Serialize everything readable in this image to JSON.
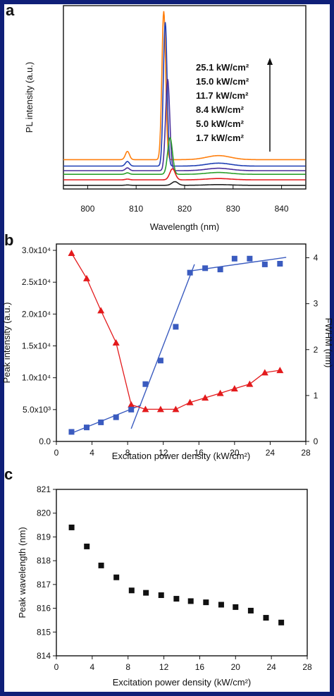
{
  "colors": {
    "border": "#0f1f78"
  },
  "chart_data": [
    {
      "panel": "a",
      "type": "line",
      "xlabel": "Wavelength (nm)",
      "ylabel": "PL intensity (a.u.)",
      "xlim": [
        795,
        845
      ],
      "ylim": [
        0,
        100
      ],
      "xticks": [
        800,
        810,
        820,
        830,
        840
      ],
      "yticks": [],
      "legend_entries": [
        "25.1 kW/cm²",
        "15.0 kW/cm²",
        "11.7 kW/cm²",
        "8.4 kW/cm²",
        "5.0 kW/cm²",
        "1.7 kW/cm²"
      ],
      "series": [
        {
          "name": "25.1 kW/cm²",
          "color": "#ff7f0e",
          "baseline": 16,
          "bump808": 4.5,
          "peak": 97,
          "peakx": 815.7,
          "width": 0.55,
          "hump": 2.2
        },
        {
          "name": "15.0 kW/cm²",
          "color": "#1f3fb4",
          "baseline": 12.5,
          "bump808": 2.5,
          "peak": 91,
          "peakx": 816.0,
          "width": 0.55,
          "hump": 1.6
        },
        {
          "name": "11.7 kW/cm²",
          "color": "#4a2f9c",
          "baseline": 10,
          "bump808": 1.5,
          "peak": 60,
          "peakx": 816.5,
          "width": 0.6,
          "hump": 1.3
        },
        {
          "name": "8.4 kW/cm²",
          "color": "#2ca02c",
          "baseline": 8,
          "bump808": 0.8,
          "peak": 28,
          "peakx": 817.0,
          "width": 0.7,
          "hump": 1.0
        },
        {
          "name": "5.0 kW/cm²",
          "color": "#e31a1c",
          "baseline": 5,
          "bump808": 0.4,
          "peak": 11,
          "peakx": 817.5,
          "width": 0.8,
          "hump": 0.7
        },
        {
          "name": "1.7 kW/cm²",
          "color": "#222222",
          "baseline": 2,
          "bump808": 0.2,
          "peak": 4,
          "peakx": 818.0,
          "width": 0.9,
          "hump": 0.4
        }
      ]
    },
    {
      "panel": "b",
      "type": "scatter",
      "xlabel": "Excitation power density (kW/cm²)",
      "ylabel": "Peak intensity (a.u.)",
      "y2label": "FWHM (nm)",
      "xlim": [
        0,
        28
      ],
      "ylim": [
        0,
        31000
      ],
      "y2lim": [
        0,
        4.3
      ],
      "xticks": [
        0,
        4,
        8,
        12,
        16,
        20,
        24,
        28
      ],
      "ytick_labels": [
        "0.0",
        "5.0x10³",
        "1.0x10⁴",
        "1.5x10⁴",
        "2.0x10⁴",
        "2.5x10⁴",
        "3.0x10⁴"
      ],
      "yticks": [
        0,
        5000,
        10000,
        15000,
        20000,
        25000,
        30000
      ],
      "y2ticks": [
        0,
        1,
        2,
        3,
        4
      ],
      "intensity": {
        "color": "#3a5bbf",
        "x": [
          1.7,
          3.4,
          5.0,
          6.7,
          8.4,
          10.0,
          11.7,
          13.4,
          15.0,
          16.7,
          18.4,
          20.0,
          21.7,
          23.4,
          25.1
        ],
        "y": [
          1500,
          2200,
          3000,
          3800,
          5000,
          9000,
          12700,
          18000,
          26500,
          27200,
          27000,
          28700,
          28700,
          27800,
          27900
        ],
        "fit_lines": [
          [
            [
              1.7,
              1300
            ],
            [
              9.5,
              5700
            ]
          ],
          [
            [
              8.4,
              2000
            ],
            [
              15.5,
              27800
            ]
          ],
          [
            [
              15.2,
              26800
            ],
            [
              25.8,
              28900
            ]
          ]
        ]
      },
      "fwhm": {
        "color": "#e31a1c",
        "x": [
          1.7,
          3.4,
          5.0,
          6.7,
          8.4,
          10.0,
          11.7,
          13.4,
          15.0,
          16.7,
          18.4,
          20.0,
          21.7,
          23.4,
          25.1
        ],
        "y": [
          4.1,
          3.55,
          2.85,
          2.15,
          0.8,
          0.7,
          0.7,
          0.7,
          0.85,
          0.95,
          1.05,
          1.15,
          1.25,
          1.5,
          1.55
        ]
      }
    },
    {
      "panel": "c",
      "type": "scatter",
      "xlabel": "Excitation power density (kW/cm²)",
      "ylabel": "Peak wavelength (nm)",
      "xlim": [
        0,
        28
      ],
      "ylim": [
        814,
        821
      ],
      "xticks": [
        0,
        4,
        8,
        12,
        16,
        20,
        24,
        28
      ],
      "yticks": [
        814,
        815,
        816,
        817,
        818,
        819,
        820,
        821
      ],
      "color": "#111111",
      "x": [
        1.7,
        3.4,
        5.0,
        6.7,
        8.4,
        10.0,
        11.7,
        13.4,
        15.0,
        16.7,
        18.4,
        20.0,
        21.7,
        23.4,
        25.1
      ],
      "y": [
        819.4,
        818.6,
        817.8,
        817.3,
        816.75,
        816.65,
        816.55,
        816.4,
        816.3,
        816.25,
        816.15,
        816.05,
        815.9,
        815.6,
        815.4
      ]
    }
  ]
}
